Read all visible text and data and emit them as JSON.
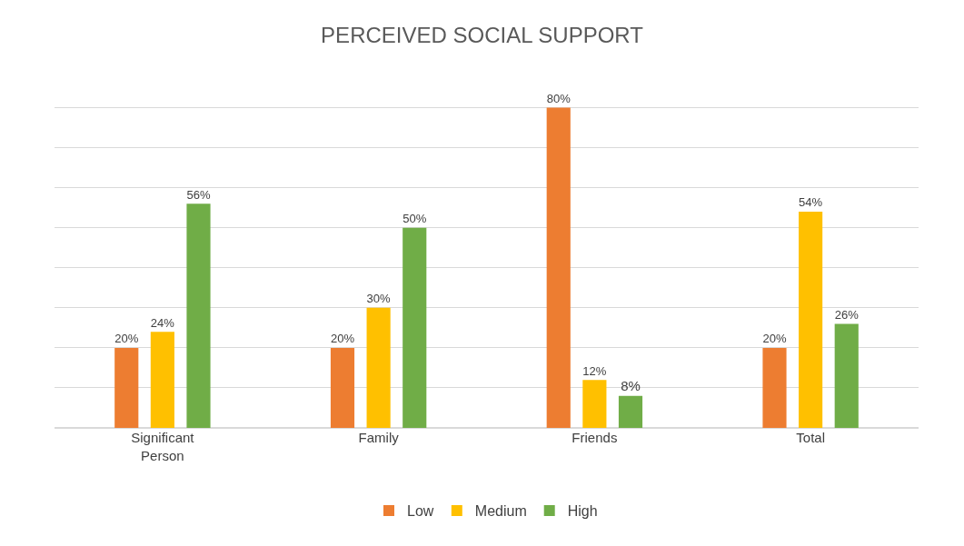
{
  "chart_data": {
    "type": "bar",
    "title": "PERCEIVED SOCIAL SUPPORT",
    "categories": [
      "Significant Person",
      "Family",
      "Friends",
      "Total"
    ],
    "series": [
      {
        "name": "Low",
        "color": "#ed7d31",
        "values": [
          20,
          20,
          80,
          20
        ],
        "value_labels": [
          "20%",
          "20%",
          "80%",
          "20%"
        ]
      },
      {
        "name": "Medium",
        "color": "#ffc000",
        "values": [
          24,
          30,
          12,
          54
        ],
        "value_labels": [
          "24%",
          "30%",
          "12%",
          "54%"
        ]
      },
      {
        "name": "High",
        "color": "#70ad47",
        "values": [
          56,
          50,
          8,
          26
        ],
        "value_labels": [
          "56%",
          "50%",
          "8%",
          "26%"
        ]
      }
    ],
    "tick_labels": "x",
    "grid": "y",
    "legend": "bottom"
  }
}
